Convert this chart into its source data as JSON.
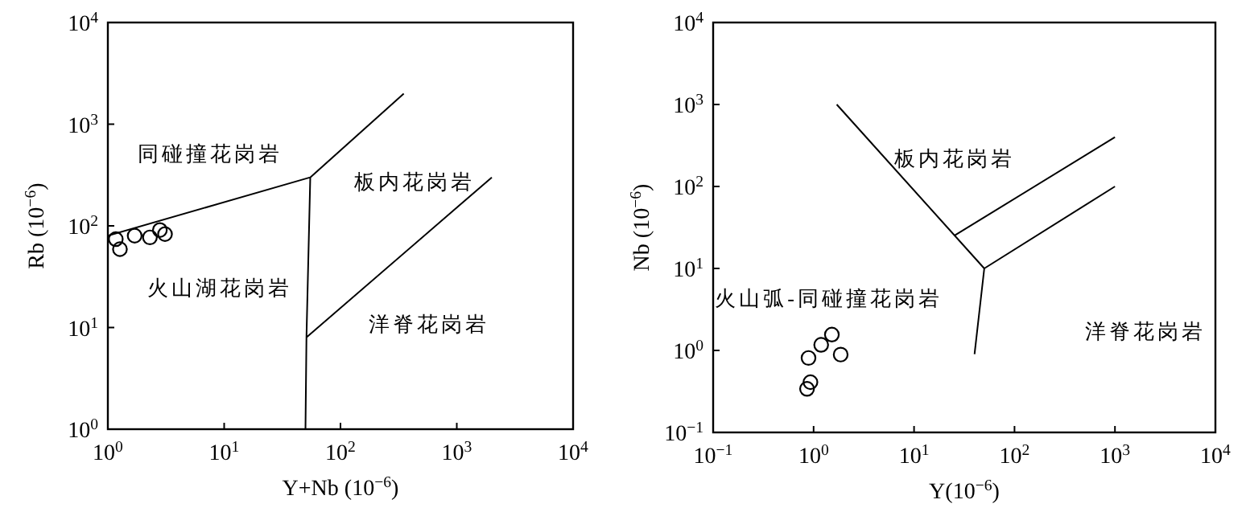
{
  "chart_data": [
    {
      "type": "scatter",
      "log": "xy",
      "xlabel": "Y+Nb (10$^{−6}$)",
      "ylabel": "Rb (10$^{−6}$)",
      "xlim": [
        1,
        10000
      ],
      "ylim": [
        1,
        10000
      ],
      "xticks": [
        {
          "value": 1,
          "label": "10$^{0}$"
        },
        {
          "value": 10,
          "label": "10$^{1}$"
        },
        {
          "value": 100,
          "label": "10$^{2}$"
        },
        {
          "value": 1000,
          "label": "10$^{3}$"
        },
        {
          "value": 10000,
          "label": "10$^{4}$"
        }
      ],
      "yticks": [
        {
          "value": 1,
          "label": "10$^{0}$"
        },
        {
          "value": 10,
          "label": "10$^{1}$"
        },
        {
          "value": 100,
          "label": "10$^{2}$"
        },
        {
          "value": 1000,
          "label": "10$^{3}$"
        },
        {
          "value": 10000,
          "label": "10$^{4}$"
        }
      ],
      "series": [
        {
          "marker": "circle",
          "color": "#000000",
          "x": [
            1.17,
            1.27,
            1.7,
            2.3,
            2.8,
            3.1
          ],
          "values": [
            74,
            59,
            80,
            77,
            91,
            83
          ]
        },
        {
          "type": "line",
          "color": "#000000",
          "x": [
            1,
            55,
            350,
            null,
            55,
            51,
            50,
            null,
            51,
            2000
          ],
          "values": [
            80,
            300,
            2000,
            null,
            300,
            8,
            1,
            null,
            8,
            300
          ]
        }
      ],
      "annotations": [
        "同碰撞花岗岩",
        "板内花岗岩",
        "火山湖花岗岩",
        "洋脊花岗岩"
      ]
    },
    {
      "type": "scatter",
      "log": "xy",
      "xlabel": "Y(10$^{−6}$)",
      "ylabel": "Nb (10$^{−6}$)",
      "xlim": [
        0.1,
        10000
      ],
      "ylim": [
        0.1,
        10000
      ],
      "xticks": [
        {
          "value": 0.1,
          "label": "10$^{−1}$"
        },
        {
          "value": 1,
          "label": "10$^{0}$"
        },
        {
          "value": 10,
          "label": "10$^{1}$"
        },
        {
          "value": 100,
          "label": "10$^{2}$"
        },
        {
          "value": 1000,
          "label": "10$^{3}$"
        },
        {
          "value": 10000,
          "label": "10$^{4}$"
        }
      ],
      "yticks": [
        {
          "value": 0.1,
          "label": "10$^{−1}$"
        },
        {
          "value": 1,
          "label": "10$^{0}$"
        },
        {
          "value": 10,
          "label": "10$^{1}$"
        },
        {
          "value": 100,
          "label": "10$^{2}$"
        },
        {
          "value": 1000,
          "label": "10$^{3}$"
        },
        {
          "value": 10000,
          "label": "10$^{4}$"
        }
      ],
      "series": [
        {
          "marker": "circle",
          "color": "#000000",
          "x": [
            0.89,
            1.19,
            1.52,
            1.86,
            0.93,
            0.86
          ],
          "values": [
            0.81,
            1.17,
            1.56,
            0.89,
            0.41,
            0.34
          ]
        },
        {
          "type": "line",
          "color": "#000000",
          "x": [
            1.7,
            50,
            40,
            null,
            50,
            1000,
            null,
            25,
            1000
          ],
          "values": [
            1000,
            10,
            0.9,
            null,
            10,
            100,
            null,
            25,
            400
          ]
        }
      ],
      "annotations": [
        "板内花岗岩",
        "火山弧-同碰撞花岗岩",
        "洋脊花岗岩"
      ]
    }
  ]
}
